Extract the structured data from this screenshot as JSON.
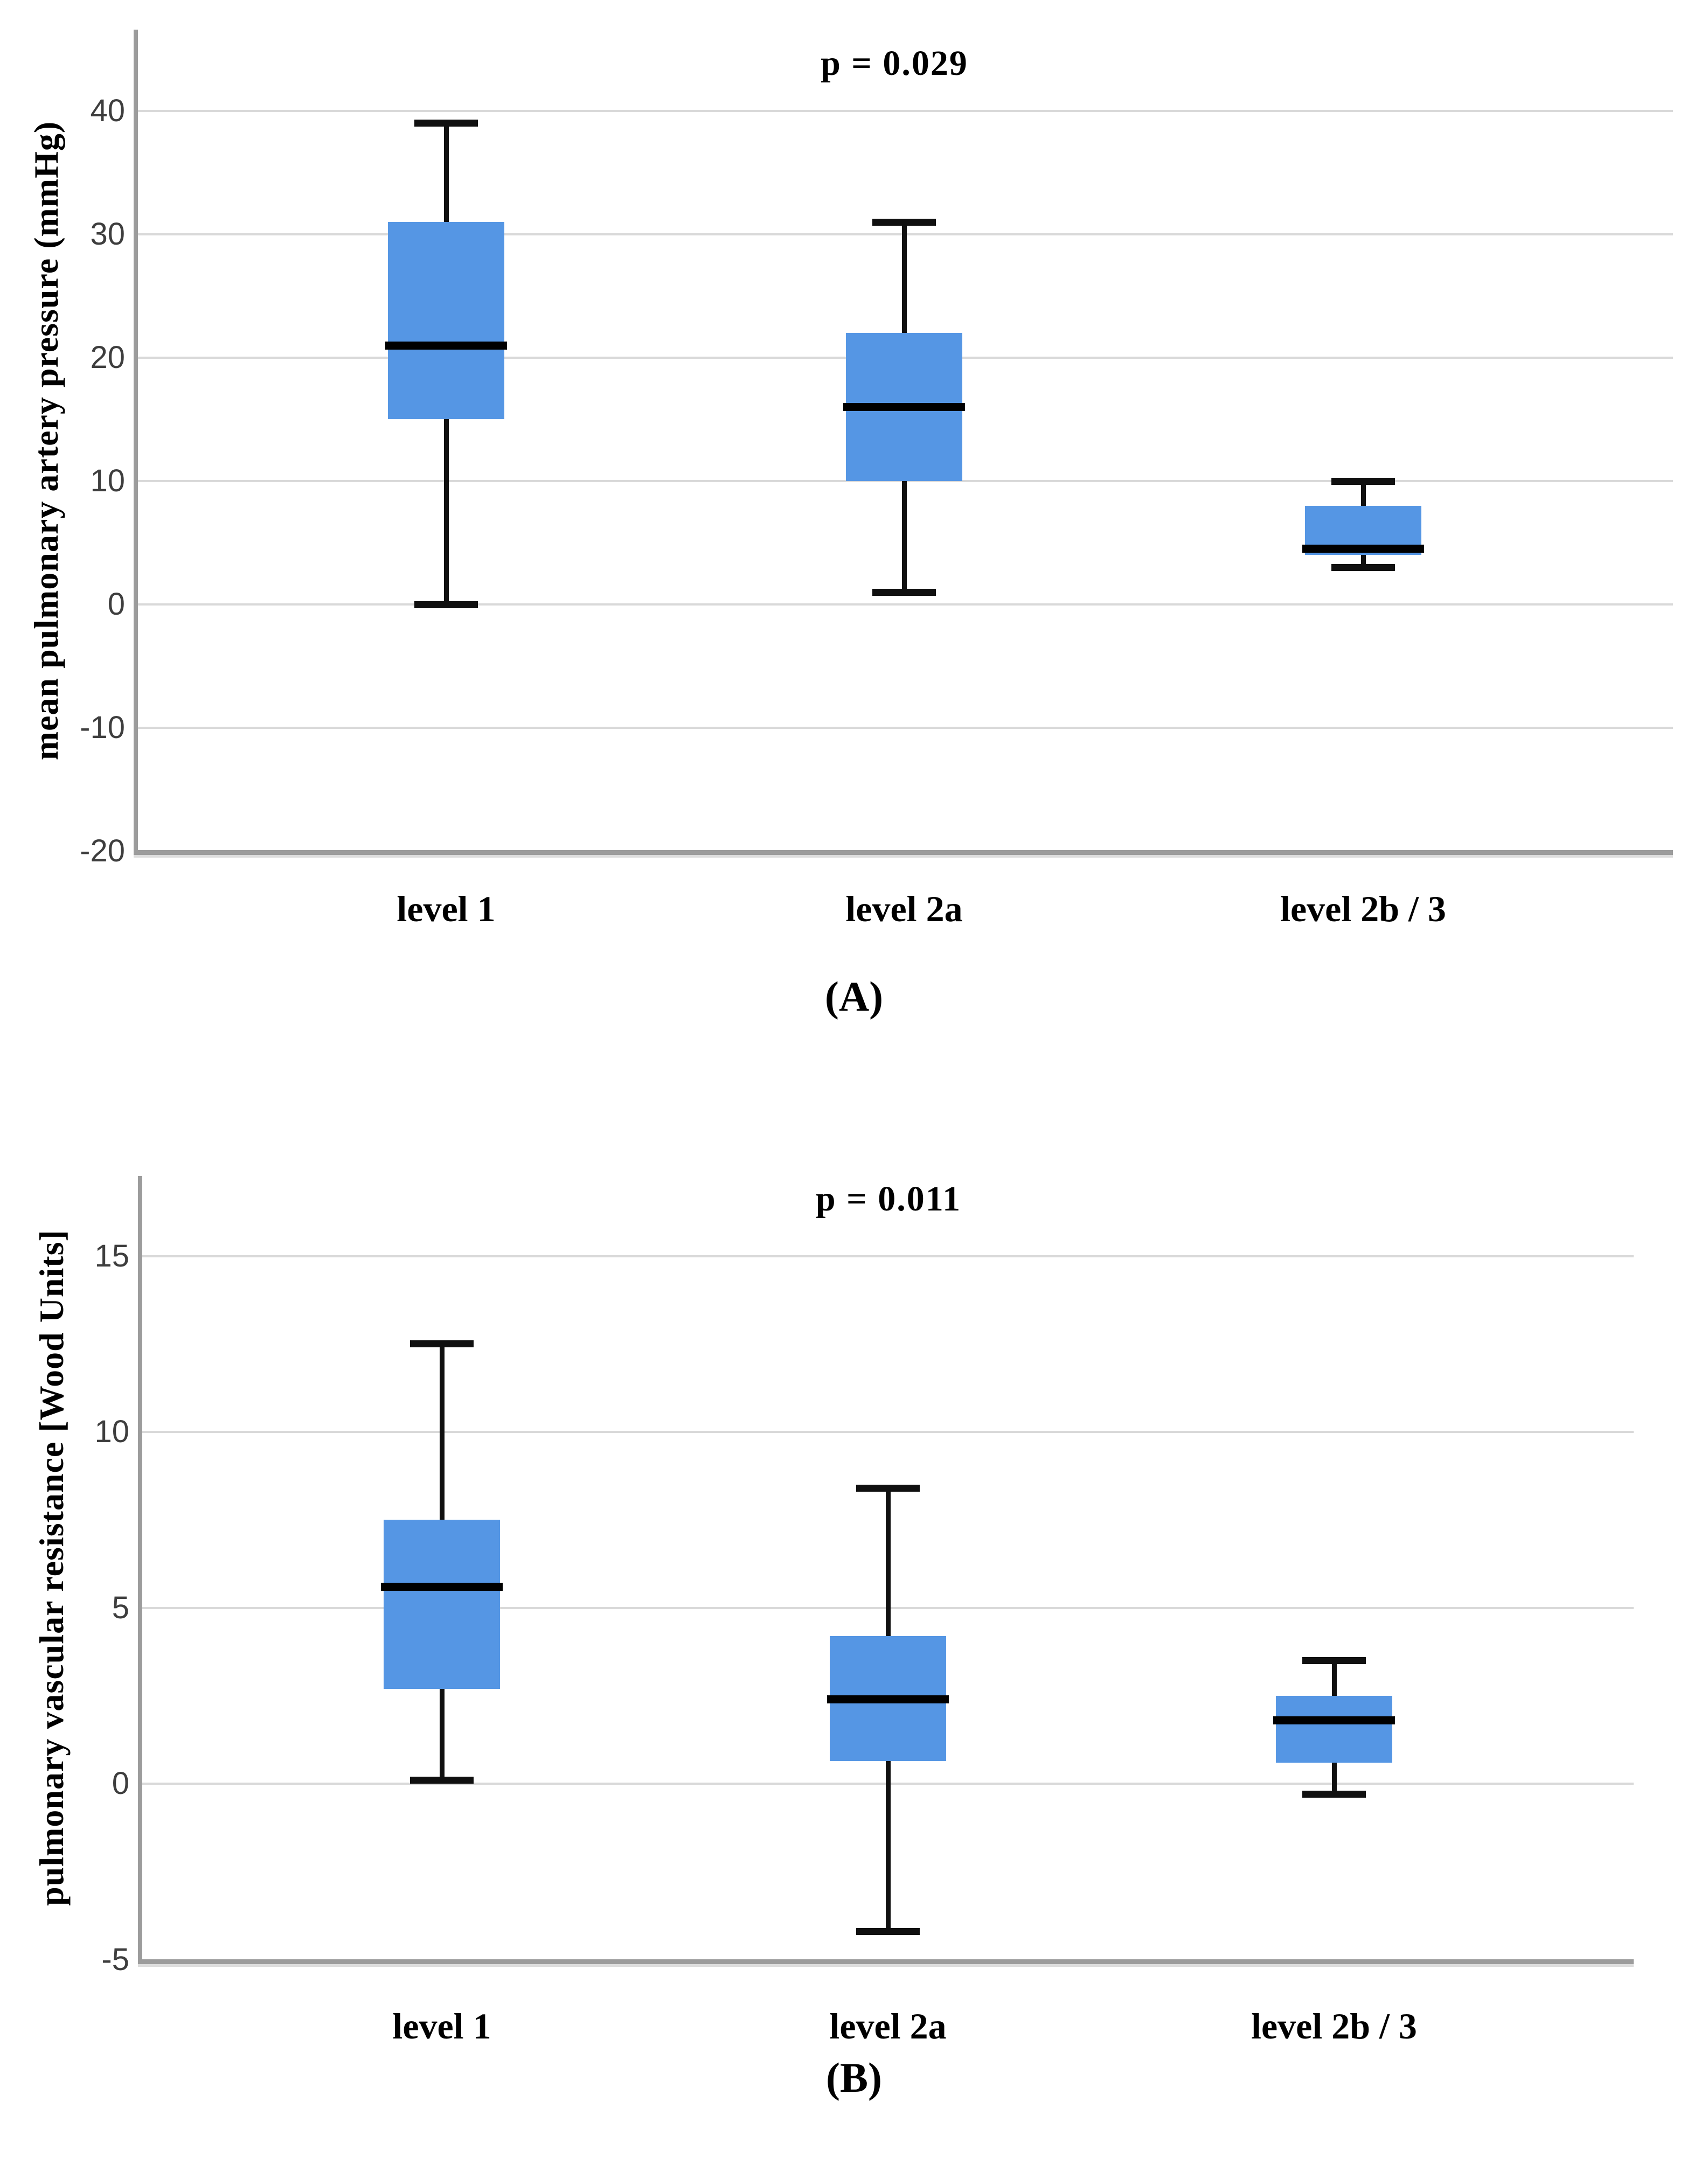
{
  "page": {
    "background": "#ffffff"
  },
  "colors": {
    "box_fill": "#5596e4",
    "median": "#000000",
    "whisker": "#101010",
    "gridline": "#d9d9d9",
    "axis": "#9c9c9c",
    "tick_label": "#3e3e3e",
    "text": "#000000"
  },
  "chart_data": [
    {
      "type": "box",
      "panel": "A",
      "title": "p = 0.029",
      "ylabel": "mean pulmonary artery pressure (mmHg)",
      "xlabel": "",
      "categories": [
        "level 1",
        "level 2a",
        "level 2b / 3"
      ],
      "yticks": [
        40,
        30,
        20,
        10,
        0,
        -10,
        -20
      ],
      "ylim": [
        -20,
        47
      ],
      "grid": true,
      "legend": "none",
      "series": [
        {
          "name": "level 1",
          "low": 0,
          "q1": 15,
          "median": 21,
          "q3": 31,
          "high": 39
        },
        {
          "name": "level 2a",
          "low": 1,
          "q1": 10,
          "median": 16,
          "q3": 22,
          "high": 31
        },
        {
          "name": "level 2b / 3",
          "low": 3,
          "q1": 4,
          "median": 4.5,
          "q3": 8,
          "high": 10
        }
      ],
      "caption": "(A)"
    },
    {
      "type": "box",
      "panel": "B",
      "title": "p = 0.011",
      "ylabel": "pulmonary vascular resistance [Wood Units]",
      "xlabel": "",
      "categories": [
        "level 1",
        "level 2a",
        "level 2b / 3"
      ],
      "yticks": [
        15,
        10,
        5,
        0,
        -5
      ],
      "ylim": [
        -5,
        17
      ],
      "grid": true,
      "legend": "none",
      "series": [
        {
          "name": "level 1",
          "low": 0.1,
          "q1": 2.7,
          "median": 5.6,
          "q3": 7.5,
          "high": 12.5
        },
        {
          "name": "level 2a",
          "low": -4.2,
          "q1": 0.65,
          "median": 2.4,
          "q3": 4.2,
          "high": 8.4
        },
        {
          "name": "level 2b / 3",
          "low": -0.3,
          "q1": 0.6,
          "median": 1.8,
          "q3": 2.5,
          "high": 3.5
        }
      ],
      "caption": "(B)"
    }
  ]
}
